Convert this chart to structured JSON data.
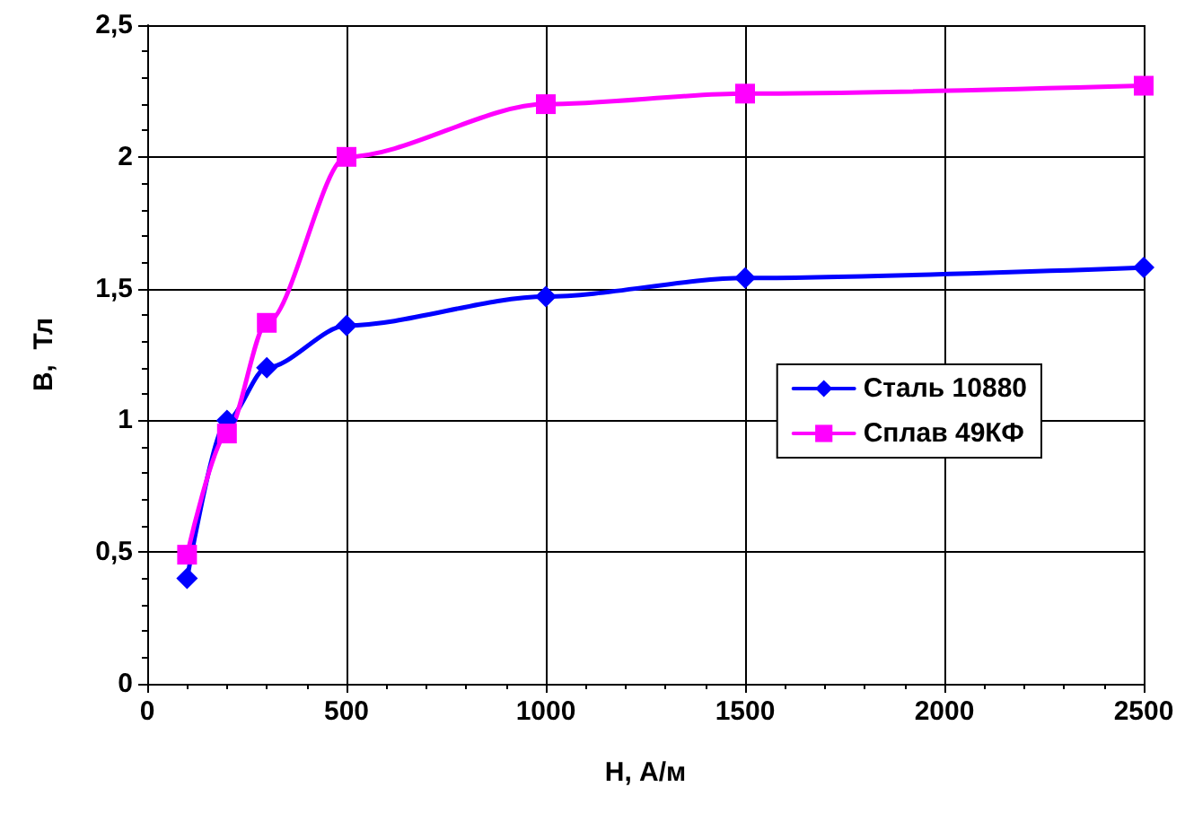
{
  "chart_data": {
    "type": "line",
    "xlabel": "H, А/м",
    "ylabel": "B,  Тл",
    "x": [
      100,
      200,
      300,
      500,
      1000,
      1500,
      2500
    ],
    "series": [
      {
        "name": "Сталь 10880",
        "color": "#0000ff",
        "marker": "diamond",
        "values": [
          0.4,
          1.0,
          1.2,
          1.36,
          1.47,
          1.54,
          1.58
        ]
      },
      {
        "name": "Сплав 49КФ",
        "color": "#ff00ff",
        "marker": "square",
        "values": [
          0.49,
          0.95,
          1.37,
          2.0,
          2.2,
          2.24,
          2.27
        ]
      }
    ],
    "xlim": [
      0,
      2500
    ],
    "xticks": [
      0,
      500,
      1000,
      1500,
      2000,
      2500
    ],
    "ylim": [
      0,
      2.5
    ],
    "yticks": [
      {
        "value": 0,
        "label": "0"
      },
      {
        "value": 0.5,
        "label": "0,5"
      },
      {
        "value": 1,
        "label": "1"
      },
      {
        "value": 1.5,
        "label": "1,5"
      },
      {
        "value": 2,
        "label": "2"
      },
      {
        "value": 2.5,
        "label": "2,5"
      }
    ],
    "grid": true,
    "legend": "right",
    "line_style": "solid"
  }
}
